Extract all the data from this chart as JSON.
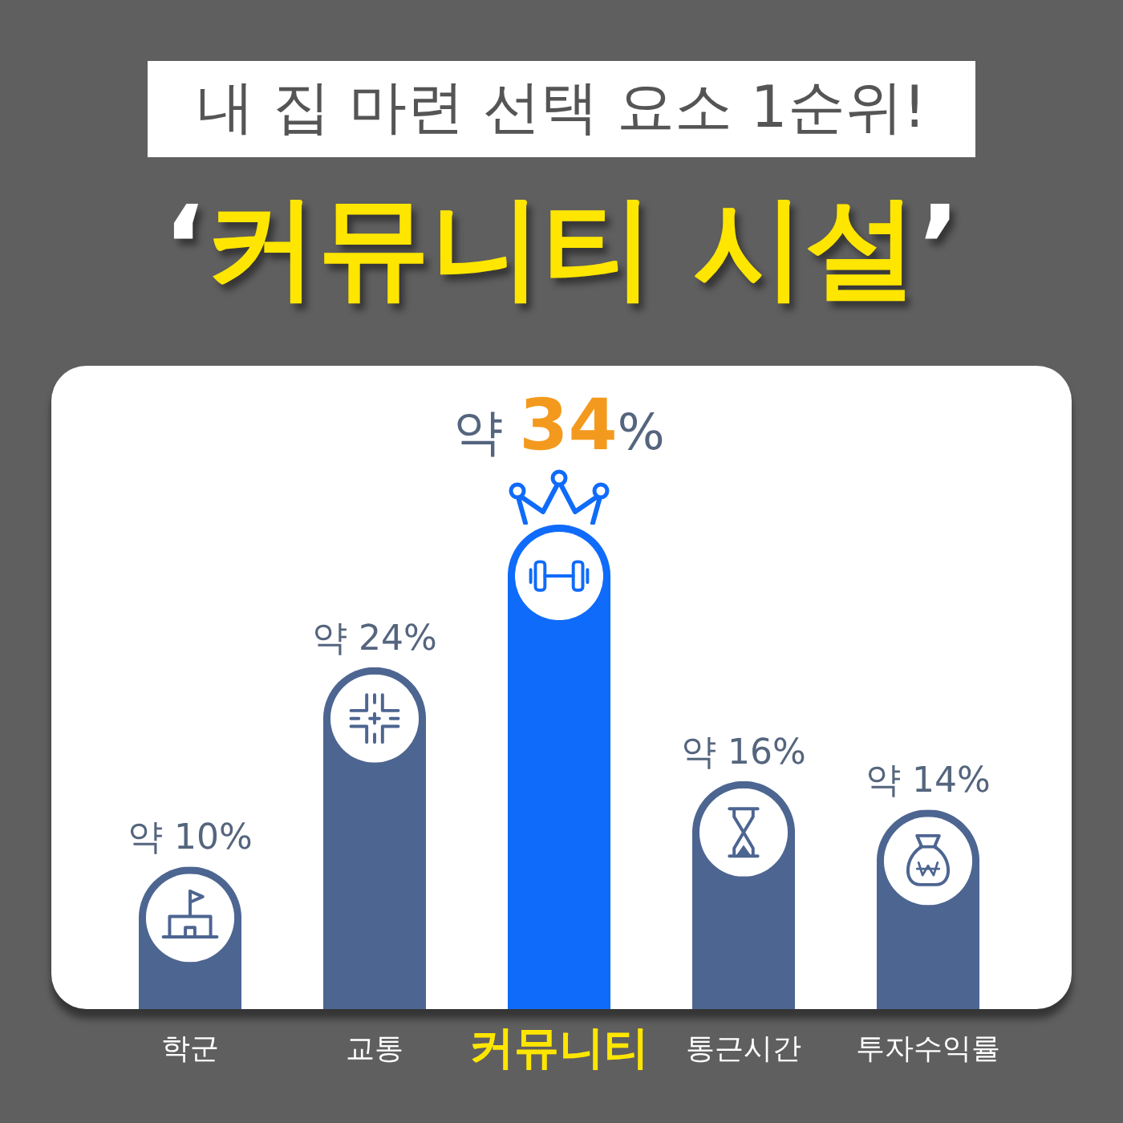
{
  "chart_data": {
    "type": "bar",
    "title": "내 집 마련 선택 요소 1순위!",
    "subtitle": "‘커뮤니티 시설’",
    "categories": [
      "학군",
      "교통",
      "커뮤니티",
      "통근시간",
      "투자수익률"
    ],
    "values": [
      10,
      24,
      34,
      16,
      14
    ],
    "colors": [
      "#4d6591",
      "#4d6591",
      "#0f6bfa",
      "#4d6591",
      "#4d6591"
    ],
    "value_labels": [
      "약 10%",
      "약 24%",
      "약 34%",
      "약 16%",
      "약 14%"
    ]
  }
}
